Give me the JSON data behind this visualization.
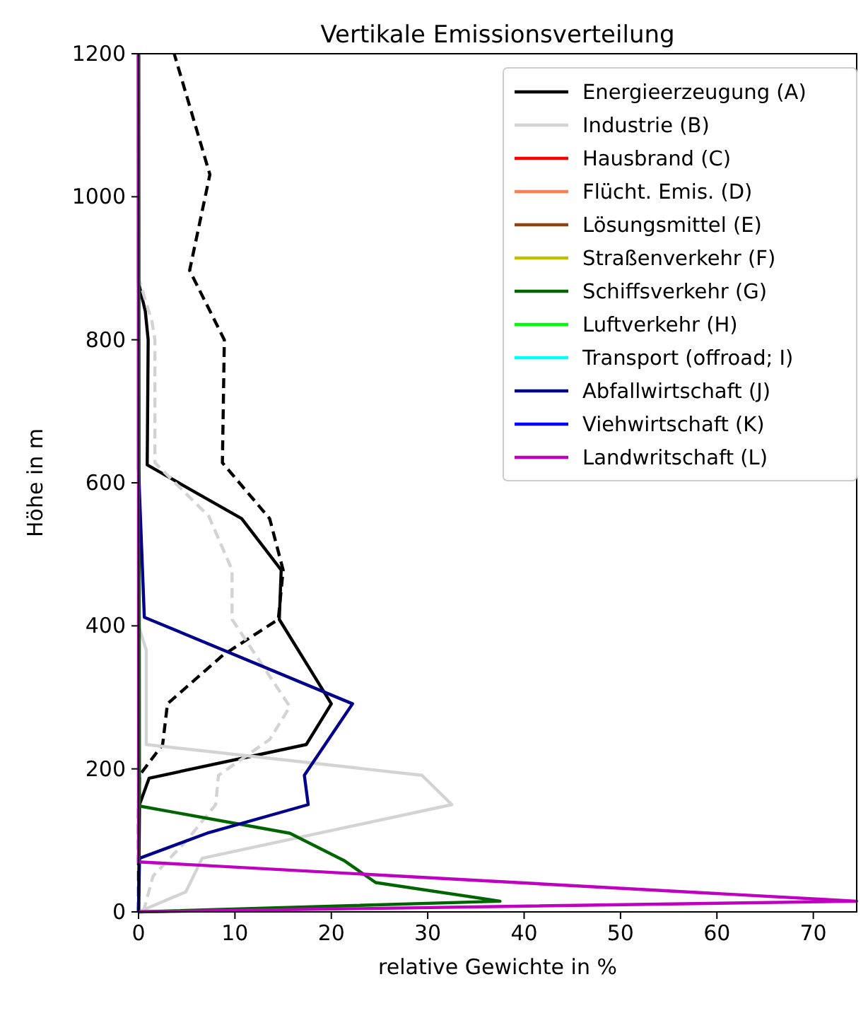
{
  "chart_data": {
    "type": "line",
    "title": "Vertikale Emissionsverteilung",
    "xlabel": "relative Gewichte in %",
    "ylabel": "Höhe in m",
    "xlim": [
      0,
      74.5
    ],
    "ylim": [
      0,
      1200
    ],
    "xticks": [
      0,
      10,
      20,
      30,
      40,
      50,
      60,
      70
    ],
    "yticks": [
      0,
      200,
      400,
      600,
      800,
      1000,
      1200
    ],
    "grid": false,
    "legend": "top right",
    "marker": "none",
    "line_style": "solid",
    "series": [
      {
        "name": "Energieerzeugung (A)",
        "color": "#000000",
        "x": [
          0,
          0.1,
          1.1,
          17.4,
          20,
          14.6,
          14.8,
          10.7,
          0.9,
          1.0,
          0.7,
          0,
          0
        ],
        "values": [
          0,
          150,
          187,
          234,
          291,
          409,
          478,
          550,
          625,
          800,
          840,
          880,
          1200
        ]
      },
      {
        "color": "#000000",
        "line_style": "dashed",
        "x": [
          0,
          0,
          0.1,
          2.5,
          3.0,
          8.75,
          14.5,
          15.0,
          13.6,
          8.7,
          8.9,
          5.3,
          7.4,
          3.7
        ],
        "values": [
          0,
          150,
          191,
          234,
          291,
          359,
          409,
          478,
          550,
          628,
          800,
          897,
          1031,
          1200
        ]
      },
      {
        "name": "Industrie (B)",
        "color": "#d3d3d3",
        "x": [
          0,
          4.9,
          6.6,
          32.5,
          29.4,
          0.8,
          0.8,
          0,
          0
        ],
        "values": [
          0,
          28,
          75,
          150,
          191,
          234,
          366,
          400,
          1200
        ]
      },
      {
        "color": "#d3d3d3",
        "line_style": "dashed",
        "x": [
          0.5,
          1.5,
          5.0,
          8.0,
          8.3,
          13.6,
          15.7,
          9.7,
          9.7,
          7.3,
          1.7,
          1.7,
          1.4,
          0
        ],
        "values": [
          0,
          50,
          100,
          150,
          191,
          241,
          287,
          409,
          478,
          553,
          628,
          800,
          825,
          887
        ]
      },
      {
        "name": "Hausbrand (C)",
        "color": "#ff0000"
      },
      {
        "name": "Flücht. Emis. (D)",
        "color": "#ff7f50"
      },
      {
        "name": "Lösungsmittel (E)",
        "color": "#8b4513"
      },
      {
        "name": "Straßenverkehr (F)",
        "color": "#bfbf00"
      },
      {
        "name": "Schiffsverkehr (G)",
        "color": "#006400",
        "x": [
          0,
          37.5,
          24.6,
          21.3,
          15.7,
          0.1,
          0
        ],
        "values": [
          0,
          15,
          41,
          72,
          110,
          148,
          1200
        ]
      },
      {
        "name": "Luftverkehr (H)",
        "color": "#00ff00"
      },
      {
        "name": "Transport (offroad; I)",
        "color": "#00ffff"
      },
      {
        "name": "Abfallwirtschaft (J)",
        "color": "#00008b",
        "x": [
          0,
          0.1,
          7.1,
          17.6,
          17.2,
          22.2,
          0.6,
          0,
          0
        ],
        "values": [
          0,
          75,
          110,
          150,
          191,
          291,
          412,
          620,
          1200
        ]
      },
      {
        "name": "Viehwirtschaft (K)",
        "color": "#0000ff"
      },
      {
        "name": "Landwritschaft (L)",
        "color": "#c000c0",
        "x": [
          0,
          74.5,
          0,
          0
        ],
        "values": [
          0,
          15,
          70,
          1200
        ]
      }
    ]
  }
}
